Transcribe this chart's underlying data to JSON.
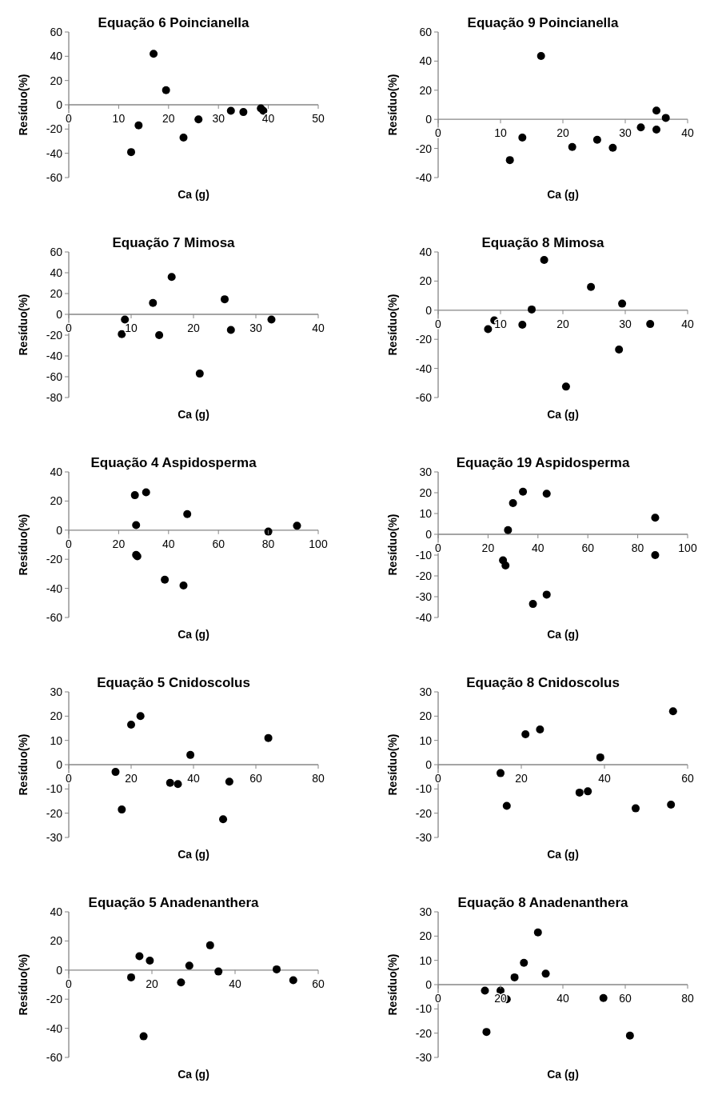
{
  "chart_data": [
    {
      "type": "scatter",
      "title": "Equação 6 Poincianella",
      "xlabel": "Ca (g)",
      "ylabel": "Resíduo(%)",
      "xlim": [
        0,
        50
      ],
      "xticks": [
        0,
        10,
        20,
        30,
        40,
        50
      ],
      "ylim": [
        -60,
        60
      ],
      "yticks": [
        -60,
        -40,
        -20,
        0,
        20,
        40,
        60
      ],
      "marker": "circle",
      "series": [
        {
          "color": "#000000",
          "x": [
            12.5,
            14,
            17,
            19.5,
            23,
            26,
            32.5,
            35,
            38.5,
            39
          ],
          "values": [
            -39,
            -17,
            42,
            12,
            -27,
            -12,
            -5,
            -6,
            -3,
            -5
          ]
        }
      ]
    },
    {
      "type": "scatter",
      "title": "Equação 9 Poincianella",
      "xlabel": "Ca (g)",
      "ylabel": "Resíduo(%)",
      "xlim": [
        0,
        40
      ],
      "xticks": [
        0,
        10,
        20,
        30,
        40
      ],
      "ylim": [
        -40,
        60
      ],
      "yticks": [
        -40,
        -20,
        0,
        20,
        40,
        60
      ],
      "marker": "circle",
      "series": [
        {
          "color": "#000000",
          "x": [
            11.5,
            13.5,
            16.5,
            21.5,
            25.5,
            28,
            32.5,
            35,
            35,
            36.5
          ],
          "values": [
            -28,
            -12.5,
            43.5,
            -19,
            -14,
            -19.5,
            -5.5,
            6,
            -7,
            1
          ]
        }
      ]
    },
    {
      "type": "scatter",
      "title": "Equação 7 Mimosa",
      "xlabel": "Ca (g)",
      "ylabel": "Resíduo(%)",
      "xlim": [
        0,
        40
      ],
      "xticks": [
        0,
        10,
        20,
        30,
        40
      ],
      "ylim": [
        -80,
        60
      ],
      "yticks": [
        -80,
        -60,
        -40,
        -20,
        0,
        20,
        40,
        60
      ],
      "marker": "circle",
      "series": [
        {
          "color": "#000000",
          "x": [
            8.5,
            9,
            13.5,
            14.5,
            16.5,
            21,
            25,
            26,
            32.5
          ],
          "values": [
            -19,
            -5,
            11,
            -20,
            36,
            -57,
            14.5,
            -15,
            -5
          ]
        }
      ]
    },
    {
      "type": "scatter",
      "title": "Equação 8 Mimosa",
      "xlabel": "Ca (g)",
      "ylabel": "Resíduo(%)",
      "xlim": [
        0,
        40
      ],
      "xticks": [
        0,
        10,
        20,
        30,
        40
      ],
      "ylim": [
        -60,
        40
      ],
      "yticks": [
        -60,
        -40,
        -20,
        0,
        20,
        40
      ],
      "marker": "circle",
      "series": [
        {
          "color": "#000000",
          "x": [
            8,
            9,
            13.5,
            15,
            17,
            20.5,
            24.5,
            29,
            29.5,
            34
          ],
          "values": [
            -13,
            -7,
            -10,
            0.5,
            34.5,
            -52.5,
            16,
            -27,
            4.5,
            -9.5
          ]
        }
      ]
    },
    {
      "type": "scatter",
      "title": "Equação 4 Aspidosperma",
      "xlabel": "Ca (g)",
      "ylabel": "Resíduo(%)",
      "xlim": [
        0,
        100
      ],
      "xticks": [
        0,
        20,
        40,
        60,
        80,
        100
      ],
      "ylim": [
        -60,
        40
      ],
      "yticks": [
        -60,
        -40,
        -20,
        0,
        20,
        40
      ],
      "marker": "circle",
      "series": [
        {
          "color": "#000000",
          "x": [
            26.5,
            27,
            27,
            27.5,
            31,
            38.5,
            46,
            47.5,
            80,
            91.5
          ],
          "values": [
            24,
            3.5,
            -17,
            -18,
            26,
            -34,
            -38,
            11,
            -1,
            3
          ]
        }
      ]
    },
    {
      "type": "scatter",
      "title": "Equação 19 Aspidosperma",
      "xlabel": "Ca (g)",
      "ylabel": "Resíduo(%)",
      "xlim": [
        0,
        100
      ],
      "xticks": [
        0,
        20,
        40,
        60,
        80,
        100
      ],
      "ylim": [
        -40,
        30
      ],
      "yticks": [
        -40,
        -30,
        -20,
        -10,
        0,
        10,
        20,
        30
      ],
      "marker": "circle",
      "series": [
        {
          "color": "#000000",
          "x": [
            26,
            27,
            28,
            30,
            34,
            38,
            43.5,
            43.5,
            87,
            87
          ],
          "values": [
            -12.5,
            -15,
            2,
            15,
            20.5,
            -33.5,
            19.5,
            -29,
            8,
            -10
          ]
        }
      ]
    },
    {
      "type": "scatter",
      "title": "Equação 5 Cnidoscolus",
      "xlabel": "Ca (g)",
      "ylabel": "Resíduo(%)",
      "xlim": [
        0,
        80
      ],
      "xticks": [
        0,
        20,
        40,
        60,
        80
      ],
      "ylim": [
        -30,
        30
      ],
      "yticks": [
        -30,
        -20,
        -10,
        0,
        10,
        20,
        30
      ],
      "marker": "circle",
      "series": [
        {
          "color": "#000000",
          "x": [
            15,
            17,
            20,
            23,
            32.5,
            35,
            39,
            49.5,
            51.5,
            64
          ],
          "values": [
            -3,
            -18.5,
            16.5,
            20,
            -7.5,
            -8,
            4,
            -22.5,
            -7,
            11
          ]
        }
      ]
    },
    {
      "type": "scatter",
      "title": "Equação 8 Cnidoscolus",
      "xlabel": "Ca (g)",
      "ylabel": "Resíduo(%)",
      "xlim": [
        0,
        60
      ],
      "xticks": [
        0,
        20,
        40,
        60
      ],
      "ylim": [
        -30,
        30
      ],
      "yticks": [
        -30,
        -20,
        -10,
        0,
        10,
        20,
        30
      ],
      "marker": "circle",
      "series": [
        {
          "color": "#000000",
          "x": [
            15,
            16.5,
            21,
            24.5,
            34,
            36,
            39,
            47.5,
            56,
            56.5
          ],
          "values": [
            -3.5,
            -17,
            12.5,
            14.5,
            -11.5,
            -11,
            3,
            -18,
            -16.5,
            22
          ]
        }
      ]
    },
    {
      "type": "scatter",
      "title": "Equação 5 Anadenanthera",
      "xlabel": "Ca (g)",
      "ylabel": "Resíduo(%)",
      "xlim": [
        0,
        60
      ],
      "xticks": [
        0,
        20,
        40,
        60
      ],
      "ylim": [
        -60,
        40
      ],
      "yticks": [
        -60,
        -40,
        -20,
        0,
        20,
        40
      ],
      "marker": "circle",
      "series": [
        {
          "color": "#000000",
          "x": [
            15,
            17,
            18,
            19.5,
            27,
            29,
            34,
            36,
            50,
            54
          ],
          "values": [
            -5,
            9.5,
            -45.5,
            6.5,
            -8.5,
            3,
            17,
            -1,
            0.5,
            -7
          ]
        }
      ]
    },
    {
      "type": "scatter",
      "title": "Equação 8 Anadenanthera",
      "xlabel": "Ca (g)",
      "ylabel": "Resíduo(%)",
      "xlim": [
        0,
        80
      ],
      "xticks": [
        0,
        20,
        40,
        60,
        80
      ],
      "ylim": [
        -30,
        30
      ],
      "yticks": [
        -30,
        -20,
        -10,
        0,
        10,
        20,
        30
      ],
      "marker": "circle",
      "series": [
        {
          "color": "#000000",
          "x": [
            15,
            15.5,
            20,
            22,
            24.5,
            27.5,
            32,
            34.5,
            53,
            61.5
          ],
          "values": [
            -2.5,
            -19.5,
            -2.5,
            -6,
            3,
            9,
            21.5,
            4.5,
            -5.5,
            -21
          ]
        }
      ]
    }
  ]
}
